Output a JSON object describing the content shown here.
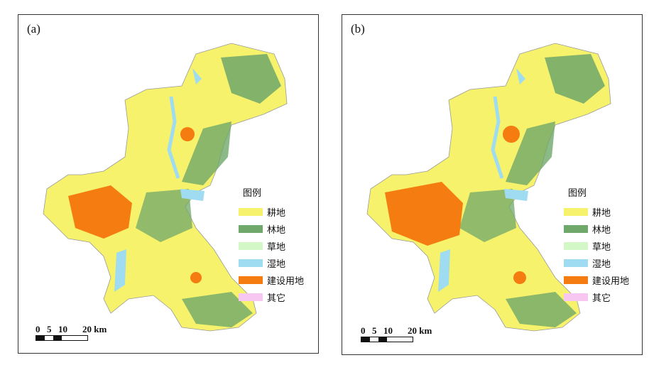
{
  "panels": [
    {
      "label": "(a)",
      "legend": {
        "title": "图例",
        "items": [
          {
            "label": "耕地",
            "color": "#f7f26b"
          },
          {
            "label": "林地",
            "color": "#6fa86a"
          },
          {
            "label": "草地",
            "color": "#d4f7c7"
          },
          {
            "label": "湿地",
            "color": "#9fdcf2"
          },
          {
            "label": "建设用地",
            "color": "#f57c10"
          },
          {
            "label": "其它",
            "color": "#f7c7f2"
          }
        ]
      },
      "scalebar": {
        "ticks": [
          "0",
          "5",
          "10",
          "20 km"
        ]
      }
    },
    {
      "label": "(b)",
      "legend": {
        "title": "图例",
        "items": [
          {
            "label": "耕地",
            "color": "#f7f26b"
          },
          {
            "label": "林地",
            "color": "#6fa86a"
          },
          {
            "label": "草地",
            "color": "#d4f7c7"
          },
          {
            "label": "湿地",
            "color": "#9fdcf2"
          },
          {
            "label": "建设用地",
            "color": "#f57c10"
          },
          {
            "label": "其它",
            "color": "#f7c7f2"
          }
        ]
      },
      "scalebar": {
        "ticks": [
          "0",
          "5",
          "10",
          "20 km"
        ]
      }
    }
  ]
}
